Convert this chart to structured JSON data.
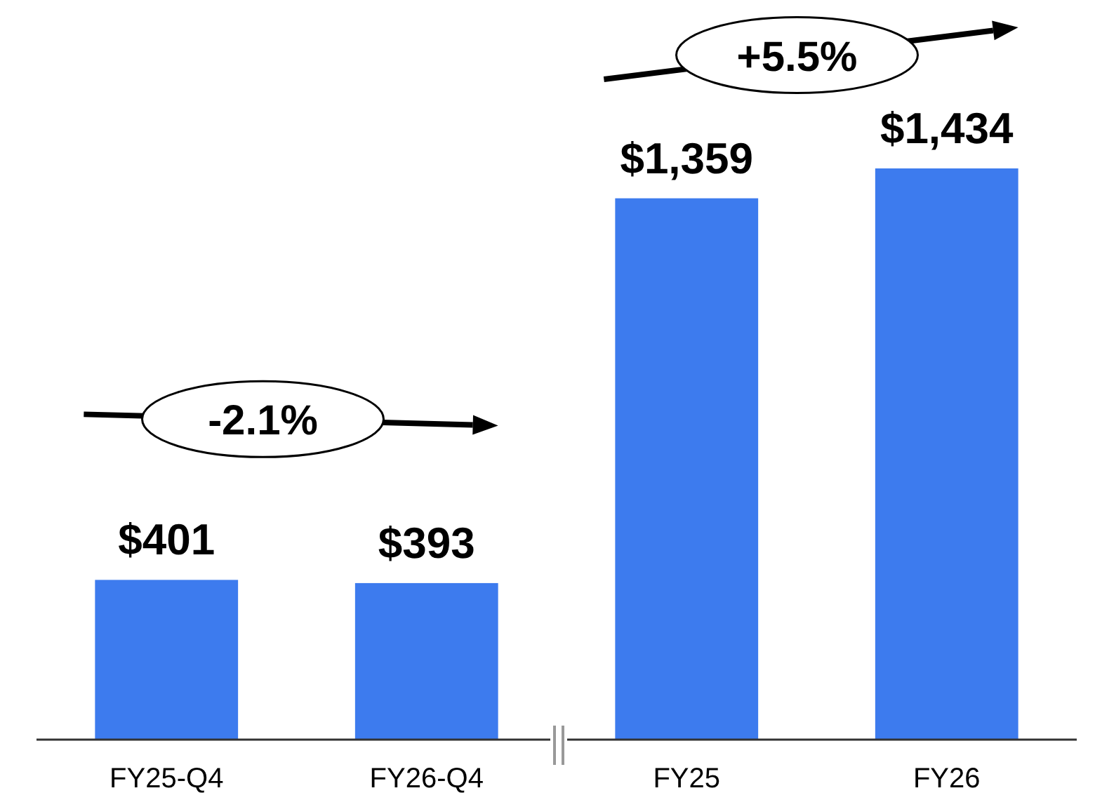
{
  "chart_data": {
    "type": "bar",
    "categories": [
      "FY25-Q4",
      "FY26-Q4",
      "FY25",
      "FY26"
    ],
    "values": [
      401,
      393,
      1359,
      1434
    ],
    "value_labels": [
      "$401",
      "$393",
      "$1,359",
      "$1,434"
    ],
    "color": "#3d7bee",
    "annotations": [
      "-2.1%",
      "+5.5%"
    ]
  }
}
